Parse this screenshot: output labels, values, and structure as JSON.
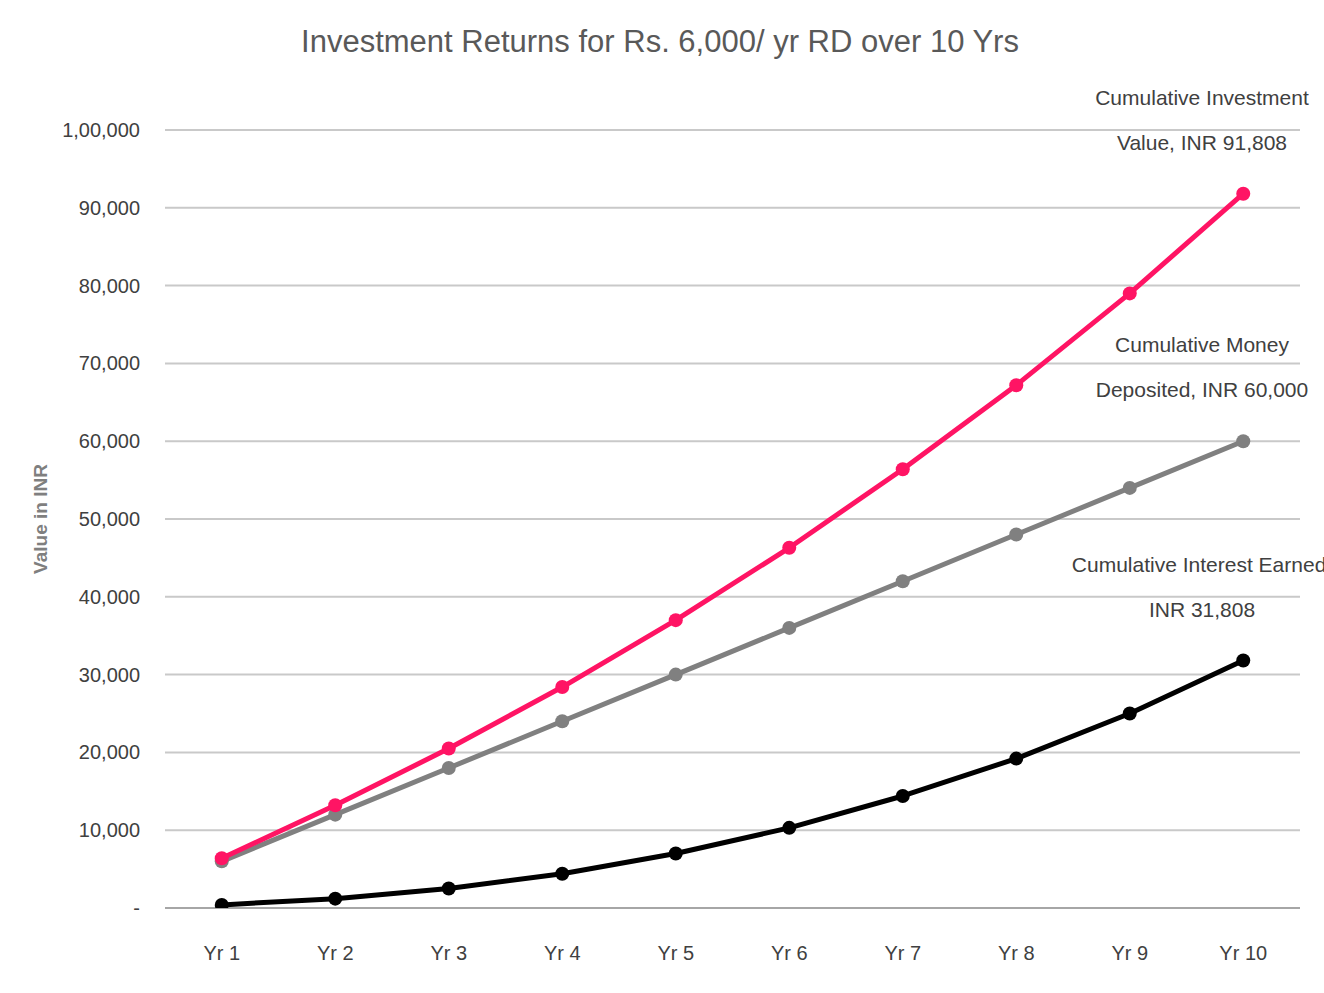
{
  "chart_data": {
    "type": "line",
    "title": "Investment Returns for Rs. 6,000/ yr RD over 10 Yrs",
    "y_label": "Value in INR",
    "categories": [
      "Yr 1",
      "Yr 2",
      "Yr 3",
      "Yr 4",
      "Yr 5",
      "Yr 6",
      "Yr 7",
      "Yr 8",
      "Yr 9",
      "Yr 10"
    ],
    "ylim": [
      0,
      100000
    ],
    "yticks": [
      {
        "value": 0,
        "label": "-"
      },
      {
        "value": 10000,
        "label": "10,000"
      },
      {
        "value": 20000,
        "label": "20,000"
      },
      {
        "value": 30000,
        "label": "30,000"
      },
      {
        "value": 40000,
        "label": "40,000"
      },
      {
        "value": 50000,
        "label": "50,000"
      },
      {
        "value": 60000,
        "label": "60,000"
      },
      {
        "value": 70000,
        "label": "70,000"
      },
      {
        "value": 80000,
        "label": "80,000"
      },
      {
        "value": 90000,
        "label": "90,000"
      },
      {
        "value": 100000,
        "label": "1,00,000"
      }
    ],
    "grid": true,
    "series": [
      {
        "name": "Cumulative Investment\nValue, INR 91,808",
        "color": "#ff1464",
        "marker": "circle",
        "values": [
          6400,
          13200,
          20500,
          28400,
          37000,
          46300,
          56400,
          67200,
          79000,
          91808
        ]
      },
      {
        "name": "Cumulative Money\nDeposited, INR 60,000",
        "color": "#808080",
        "marker": "circle",
        "values": [
          6000,
          12000,
          18000,
          24000,
          30000,
          36000,
          42000,
          48000,
          54000,
          60000
        ]
      },
      {
        "name": "Cumulative Interest Earned,\nINR 31,808",
        "color": "#000000",
        "marker": "circle",
        "values": [
          400,
          1200,
          2500,
          4400,
          7000,
          10300,
          14400,
          19200,
          25000,
          31808
        ]
      }
    ]
  }
}
